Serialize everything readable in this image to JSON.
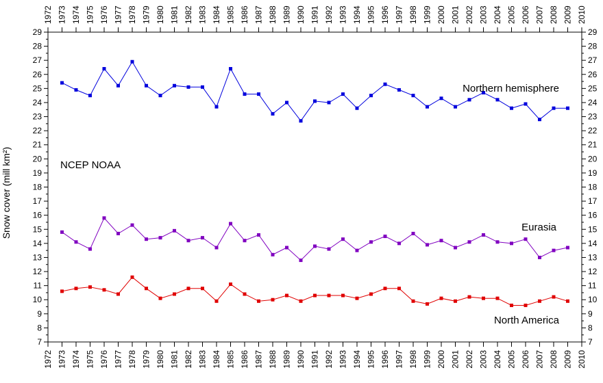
{
  "chart_data": {
    "type": "line",
    "x": [
      1973,
      1974,
      1975,
      1976,
      1977,
      1978,
      1979,
      1980,
      1981,
      1982,
      1983,
      1984,
      1985,
      1986,
      1987,
      1988,
      1989,
      1990,
      1991,
      1992,
      1993,
      1994,
      1995,
      1996,
      1997,
      1998,
      1999,
      2000,
      2001,
      2002,
      2003,
      2004,
      2005,
      2006,
      2007,
      2008,
      2009
    ],
    "xlim": [
      1972,
      2010
    ],
    "ylim": [
      7,
      29
    ],
    "ylabel": "Snow cover (mill km²)",
    "grid": false,
    "annotations": {
      "source": "NCEP NOAA",
      "northern_hemisphere": "Northern hemisphere",
      "eurasia": "Eurasia",
      "north_america": "North America"
    },
    "series": [
      {
        "name": "Northern hemisphere",
        "color": "#0000dd",
        "values": [
          25.4,
          24.9,
          24.5,
          26.4,
          25.2,
          26.9,
          25.2,
          24.5,
          25.2,
          25.1,
          25.1,
          23.7,
          26.4,
          24.6,
          24.6,
          23.2,
          24.0,
          22.7,
          24.1,
          24.0,
          24.6,
          23.6,
          24.5,
          25.3,
          24.9,
          24.5,
          23.7,
          24.3,
          23.7,
          24.2,
          24.7,
          24.2,
          23.6,
          23.9,
          22.8,
          23.6,
          23.6
        ]
      },
      {
        "name": "Eurasia",
        "color": "#8000c0",
        "values": [
          14.8,
          14.1,
          13.6,
          15.8,
          14.7,
          15.3,
          14.3,
          14.4,
          14.9,
          14.2,
          14.4,
          13.7,
          15.4,
          14.2,
          14.6,
          13.2,
          13.7,
          12.8,
          13.8,
          13.6,
          14.3,
          13.5,
          14.1,
          14.5,
          14.0,
          14.7,
          13.9,
          14.2,
          13.7,
          14.1,
          14.6,
          14.1,
          14.0,
          14.3,
          13.0,
          13.5,
          13.7
        ]
      },
      {
        "name": "North America",
        "color": "#e00000",
        "values": [
          10.6,
          10.8,
          10.9,
          10.7,
          10.4,
          11.6,
          10.8,
          10.1,
          10.4,
          10.8,
          10.8,
          9.9,
          11.1,
          10.4,
          9.9,
          10.0,
          10.3,
          9.9,
          10.3,
          10.3,
          10.3,
          10.1,
          10.4,
          10.8,
          10.8,
          9.9,
          9.7,
          10.1,
          9.9,
          10.2,
          10.1,
          10.1,
          9.6,
          9.6,
          9.9,
          10.2,
          9.9
        ]
      }
    ]
  }
}
